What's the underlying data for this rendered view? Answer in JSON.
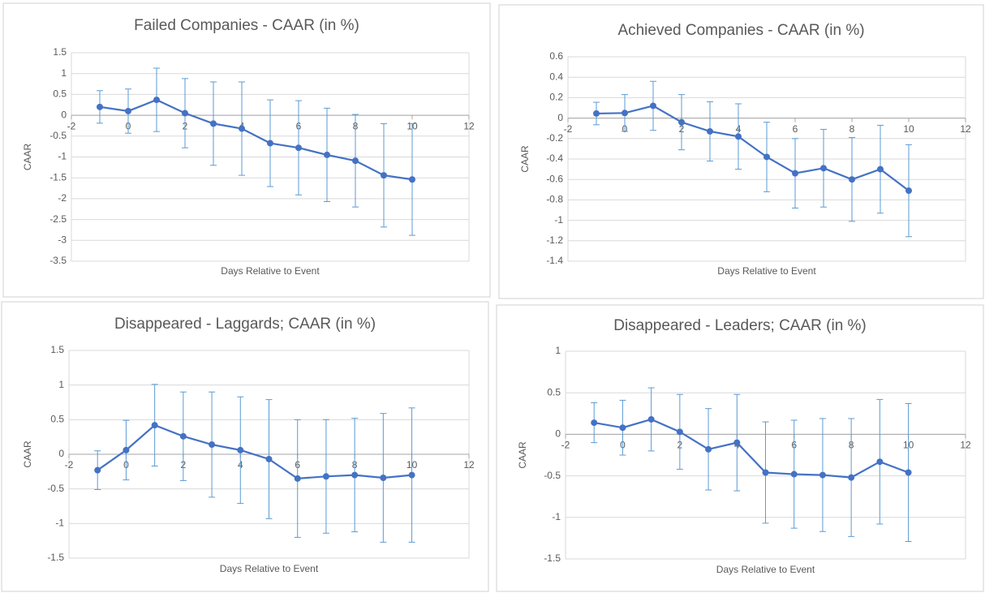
{
  "chart_data": [
    {
      "type": "line",
      "title": "Failed Companies - CAAR (in %)",
      "x_label": "Days Relative to Event",
      "y_label": "CAAR",
      "x": [
        -1,
        0,
        1,
        2,
        3,
        4,
        5,
        6,
        7,
        8,
        9,
        10
      ],
      "values": [
        0.2,
        0.1,
        0.37,
        0.05,
        -0.2,
        -0.32,
        -0.67,
        -0.78,
        -0.95,
        -1.09,
        -1.44,
        -1.54
      ],
      "errors": [
        0.39,
        0.53,
        0.76,
        0.83,
        1.0,
        1.12,
        1.04,
        1.13,
        1.12,
        1.11,
        1.24,
        1.34
      ],
      "color": "#4472c4",
      "error_color": "#5b9bd5",
      "xlim": [
        -2,
        12
      ],
      "xticks": [
        -2,
        0,
        2,
        4,
        6,
        8,
        10,
        12
      ],
      "ylim": [
        -3.5,
        1.5
      ],
      "yticks": [
        1.5,
        1,
        0.5,
        0,
        -0.5,
        -1,
        -1.5,
        -2,
        -2.5,
        -3,
        -3.5
      ],
      "grid": true
    },
    {
      "type": "line",
      "title": "Achieved Companies - CAAR (in %)",
      "x_label": "Days Relative to Event",
      "y_label": "CAAR",
      "x": [
        -1,
        0,
        1,
        2,
        3,
        4,
        5,
        6,
        7,
        8,
        9,
        10
      ],
      "values": [
        0.045,
        0.05,
        0.12,
        -0.04,
        -0.13,
        -0.18,
        -0.38,
        -0.54,
        -0.49,
        -0.6,
        -0.5,
        -0.71
      ],
      "errors": [
        0.11,
        0.18,
        0.24,
        0.27,
        0.29,
        0.32,
        0.34,
        0.34,
        0.38,
        0.41,
        0.43,
        0.45
      ],
      "color": "#4472c4",
      "error_color": "#5b9bd5",
      "xlim": [
        -2,
        12
      ],
      "xticks": [
        -2,
        0,
        2,
        4,
        6,
        8,
        10,
        12
      ],
      "ylim": [
        -1.4,
        0.6
      ],
      "yticks": [
        0.6,
        0.4,
        0.2,
        0,
        -0.2,
        -0.4,
        -0.6,
        -0.8,
        -1,
        -1.2,
        -1.4
      ],
      "grid": true
    },
    {
      "type": "line",
      "title": "Disappeared - Laggards; CAAR (in %)",
      "x_label": "Days Relative to Event",
      "y_label": "CAAR",
      "x": [
        -1,
        0,
        1,
        2,
        3,
        4,
        5,
        6,
        7,
        8,
        9,
        10
      ],
      "values": [
        -0.23,
        0.06,
        0.42,
        0.26,
        0.14,
        0.06,
        -0.07,
        -0.35,
        -0.32,
        -0.3,
        -0.34,
        -0.3
      ],
      "errors": [
        0.28,
        0.43,
        0.59,
        0.64,
        0.76,
        0.77,
        0.86,
        0.85,
        0.82,
        0.82,
        0.93,
        0.97
      ],
      "color": "#4472c4",
      "error_color": "#5b9bd5",
      "xlim": [
        -2,
        12
      ],
      "xticks": [
        -2,
        0,
        2,
        4,
        6,
        8,
        10,
        12
      ],
      "ylim": [
        -1.5,
        1.5
      ],
      "yticks": [
        1.5,
        1,
        0.5,
        0,
        -0.5,
        -1,
        -1.5
      ],
      "grid": true
    },
    {
      "type": "line",
      "title": "Disappeared - Leaders; CAAR (in %)",
      "x_label": "Days Relative to Event",
      "y_label": "CAAR",
      "x": [
        -1,
        0,
        1,
        2,
        3,
        4,
        5,
        6,
        7,
        8,
        9,
        10
      ],
      "values": [
        0.14,
        0.08,
        0.18,
        0.03,
        -0.18,
        -0.1,
        -0.46,
        -0.48,
        -0.49,
        -0.52,
        -0.33,
        -0.46
      ],
      "errors": [
        0.24,
        0.33,
        0.38,
        0.45,
        0.49,
        0.58,
        0.61,
        0.65,
        0.68,
        0.71,
        0.75,
        0.83
      ],
      "color": "#4472c4",
      "error_color": "#5b9bd5",
      "xlim": [
        -2,
        12
      ],
      "xticks": [
        -2,
        0,
        2,
        4,
        6,
        8,
        10,
        12
      ],
      "ylim": [
        -1.5,
        1
      ],
      "yticks": [
        1,
        0.5,
        0,
        -0.5,
        -1,
        -1.5
      ],
      "grid": true
    }
  ]
}
